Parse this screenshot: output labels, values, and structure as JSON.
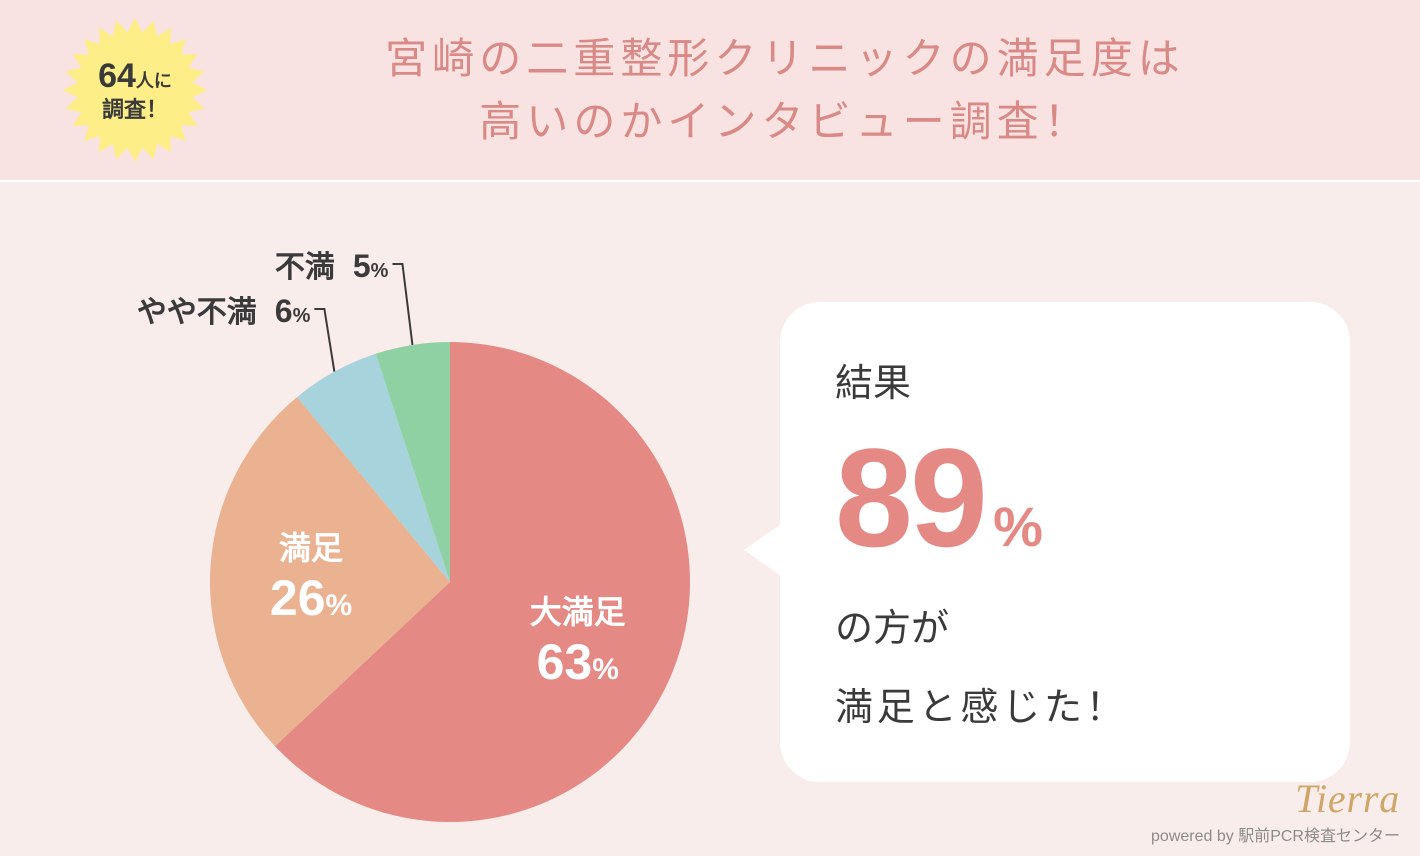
{
  "colors": {
    "header_bg": "#f8e3e2",
    "main_bg": "#f9edec",
    "title_text": "#d98986",
    "badge_fill": "#fdee87",
    "badge_text": "#3a3a3a",
    "bubble_bg": "#ffffff",
    "bubble_text": "#3a3a3a",
    "bubble_accent": "#e58985",
    "outer_label_text": "#3a3a3a",
    "watermark_brand": "#c89a54",
    "watermark_sub": "#7a7a7a"
  },
  "header": {
    "badge": {
      "number": "64",
      "suffix": "人に",
      "line2": "調査！"
    },
    "title_line1": "宮崎の二重整形クリニックの満足度は",
    "title_line2": "高いのかインタビュー調査！"
  },
  "chart": {
    "type": "pie",
    "radius": 240,
    "start_angle_deg": -90,
    "background": "#f9edec",
    "slices": [
      {
        "label": "大満足",
        "value": 63,
        "color": "#e58985",
        "inner_label": true
      },
      {
        "label": "満足",
        "value": 26,
        "color": "#eab291",
        "inner_label": true
      },
      {
        "label": "やや不満",
        "value": 6,
        "color": "#a7d3dc",
        "inner_label": false
      },
      {
        "label": "不満",
        "value": 5,
        "color": "#8fd1a3",
        "inner_label": false
      }
    ]
  },
  "bubble": {
    "line1": "結果",
    "big_number": "89",
    "big_pct": "%",
    "line3": "の方が",
    "line4": "満足と感じた！"
  },
  "watermark": {
    "brand": "Tierra",
    "sub_prefix": "powered by ",
    "sub_name": "駅前PCR検査センター"
  }
}
